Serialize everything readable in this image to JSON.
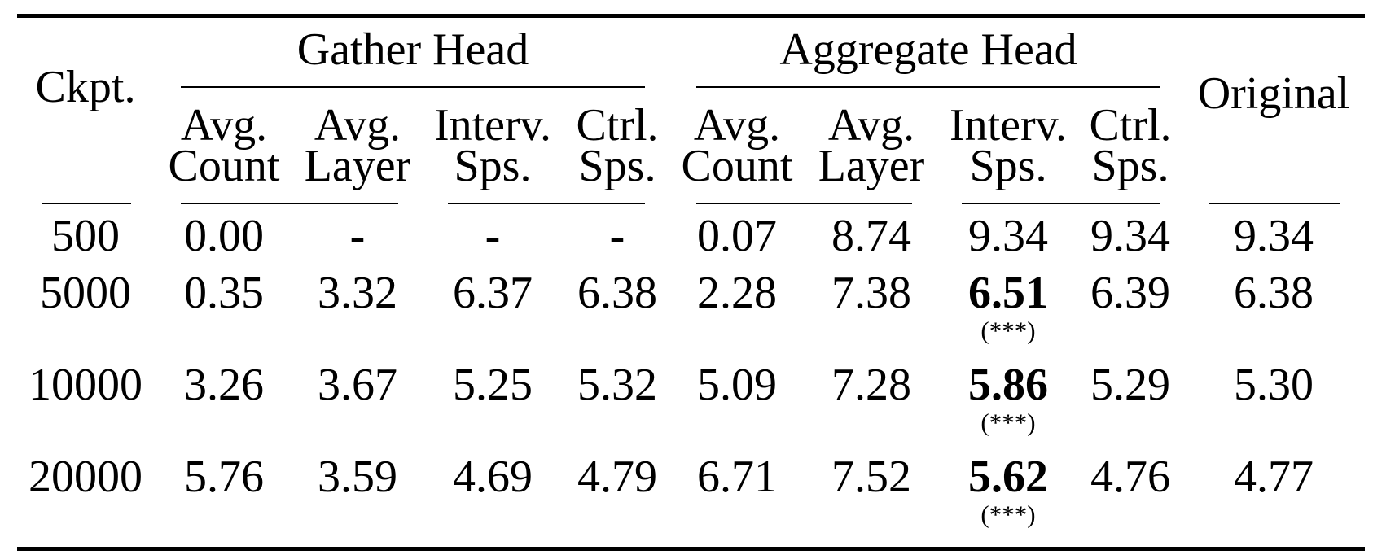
{
  "table": {
    "ckpt_header": "Ckpt.",
    "original_header": "Original",
    "groups": [
      "Gather Head",
      "Aggregate Head"
    ],
    "subheaders": [
      [
        "Avg.",
        "Count"
      ],
      [
        "Avg.",
        "Layer"
      ],
      [
        "Interv.",
        "Sps."
      ],
      [
        "Ctrl.",
        "Sps."
      ],
      [
        "Avg.",
        "Count"
      ],
      [
        "Avg.",
        "Layer"
      ],
      [
        "Interv.",
        "Sps."
      ],
      [
        "Ctrl.",
        "Sps."
      ]
    ],
    "rows": [
      {
        "ckpt": "500",
        "cells": [
          "0.00",
          "-",
          "-",
          "-",
          "0.07",
          "8.74",
          "9.34",
          "9.34",
          "9.34"
        ],
        "bold_index": null,
        "note": ""
      },
      {
        "ckpt": "5000",
        "cells": [
          "0.35",
          "3.32",
          "6.37",
          "6.38",
          "2.28",
          "7.38",
          "6.51",
          "6.39",
          "6.38"
        ],
        "bold_index": 6,
        "note": "(***)"
      },
      {
        "ckpt": "10000",
        "cells": [
          "3.26",
          "3.67",
          "5.25",
          "5.32",
          "5.09",
          "7.28",
          "5.86",
          "5.29",
          "5.30"
        ],
        "bold_index": 6,
        "note": "(***)"
      },
      {
        "ckpt": "20000",
        "cells": [
          "5.76",
          "3.59",
          "4.69",
          "4.79",
          "6.71",
          "7.52",
          "5.62",
          "4.76",
          "4.77"
        ],
        "bold_index": 6,
        "note": "(***)"
      }
    ]
  }
}
